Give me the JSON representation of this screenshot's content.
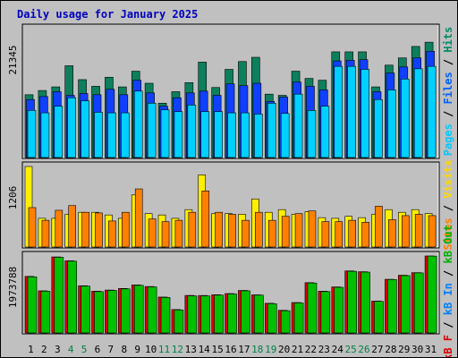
{
  "title": "Daily usage for January 2025",
  "colors": {
    "title": "#0000c0",
    "hits": "#0d7f5c",
    "files": "#1040ff",
    "pages": "#00d0ff",
    "visits": "#ffee00",
    "sites": "#ff8000",
    "kb_in": "#00c000",
    "kb_out": "#00c000",
    "kb_f": "#e00000",
    "weekend": "#007f46",
    "day_default": "#000000",
    "panel": "#c0c0c0"
  },
  "legend_top": [
    {
      "label": "Pages",
      "color": "#00c8ff"
    },
    {
      "label": "Files",
      "color": "#0060ff"
    },
    {
      "label": "Hits",
      "color": "#008a66"
    }
  ],
  "legend_mid": [
    {
      "label": "Sites",
      "color": "#ff8000"
    },
    {
      "label": "Visits",
      "color": "#ffd700"
    }
  ],
  "legend_bot": [
    {
      "label": "kB F",
      "color": "#e00000"
    },
    {
      "label": "kB In",
      "color": "#0080ff"
    },
    {
      "label": "kB Out",
      "color": "#00b000"
    }
  ],
  "chart_data": [
    {
      "type": "bar",
      "title": "Daily usage for January 2025",
      "panel": "hits/files/pages",
      "categories": [
        "1",
        "2",
        "3",
        "4",
        "5",
        "6",
        "7",
        "8",
        "9",
        "10",
        "11",
        "12",
        "13",
        "14",
        "15",
        "16",
        "17",
        "18",
        "19",
        "20",
        "21",
        "22",
        "23",
        "24",
        "25",
        "26",
        "27",
        "28",
        "29",
        "30",
        "31"
      ],
      "ymax_label": "21345",
      "ylim": [
        0,
        21345
      ],
      "series": [
        {
          "name": "Hits",
          "values": [
            10400,
            11100,
            11700,
            15200,
            12900,
            11800,
            13300,
            11700,
            14300,
            12300,
            9000,
            10900,
            12400,
            15800,
            11600,
            14600,
            15900,
            16600,
            10500,
            10300,
            14300,
            13100,
            12800,
            17500,
            17500,
            17500,
            11700,
            15300,
            16500,
            18400,
            19100
          ]
        },
        {
          "name": "Files",
          "values": [
            9600,
            10100,
            10900,
            10300,
            10600,
            10400,
            11300,
            10400,
            12800,
            10700,
            8500,
            9900,
            10700,
            11000,
            10300,
            12200,
            11900,
            12300,
            9300,
            10000,
            12500,
            11800,
            11200,
            16000,
            16100,
            16200,
            10900,
            14000,
            15000,
            16500,
            17600
          ]
        },
        {
          "name": "Pages",
          "values": [
            7800,
            7400,
            8500,
            9900,
            9400,
            7500,
            7400,
            7400,
            11000,
            9000,
            7900,
            7600,
            8700,
            7600,
            7600,
            7400,
            7400,
            7200,
            9000,
            7300,
            10500,
            7800,
            8500,
            15100,
            15100,
            14600,
            9600,
            11200,
            13000,
            14700,
            15100
          ]
        }
      ]
    },
    {
      "type": "bar",
      "panel": "visits/sites",
      "categories": [
        "1",
        "2",
        "3",
        "4",
        "5",
        "6",
        "7",
        "8",
        "9",
        "10",
        "11",
        "12",
        "13",
        "14",
        "15",
        "16",
        "17",
        "18",
        "19",
        "20",
        "21",
        "22",
        "23",
        "24",
        "25",
        "26",
        "27",
        "28",
        "29",
        "30",
        "31"
      ],
      "ymax_label": "1206",
      "ylim": [
        0,
        1206
      ],
      "series": [
        {
          "name": "Visits",
          "values": [
            1206,
            430,
            430,
            490,
            520,
            520,
            480,
            430,
            780,
            500,
            480,
            430,
            560,
            1080,
            500,
            500,
            490,
            720,
            520,
            560,
            490,
            530,
            440,
            430,
            460,
            440,
            490,
            560,
            520,
            560,
            500
          ]
        },
        {
          "name": "Sites",
          "values": [
            590,
            400,
            550,
            620,
            520,
            510,
            390,
            520,
            870,
            420,
            380,
            400,
            520,
            840,
            520,
            490,
            400,
            520,
            400,
            460,
            500,
            540,
            380,
            380,
            400,
            370,
            610,
            410,
            470,
            490,
            470
          ]
        }
      ]
    },
    {
      "type": "bar",
      "panel": "kb",
      "categories": [
        "1",
        "2",
        "3",
        "4",
        "5",
        "6",
        "7",
        "8",
        "9",
        "10",
        "11",
        "12",
        "13",
        "14",
        "15",
        "16",
        "17",
        "18",
        "19",
        "20",
        "21",
        "22",
        "23",
        "24",
        "25",
        "26",
        "27",
        "28",
        "29",
        "30",
        "31"
      ],
      "ymax_label": "1973788",
      "ylim": [
        0,
        1973788
      ],
      "series": [
        {
          "name": "kB F",
          "values": [
            1450000,
            1080000,
            1950000,
            1850000,
            1210000,
            1070000,
            1100000,
            1140000,
            1230000,
            1190000,
            920000,
            600000,
            962000,
            960000,
            980000,
            1010000,
            1090000,
            976000,
            760000,
            580000,
            780000,
            1290000,
            1070000,
            1180000,
            1590000,
            1570000,
            816000,
            1376000,
            1480000,
            1546000,
            1973788
          ]
        },
        {
          "name": "kB In",
          "values": [
            0,
            0,
            0,
            0,
            0,
            0,
            0,
            0,
            0,
            0,
            0,
            0,
            0,
            0,
            0,
            0,
            0,
            0,
            0,
            0,
            0,
            0,
            0,
            0,
            0,
            0,
            0,
            0,
            0,
            0,
            0
          ]
        },
        {
          "name": "kB Out",
          "values": [
            1440000,
            1070000,
            1940000,
            1840000,
            1200000,
            1060000,
            1090000,
            1130000,
            1220000,
            1180000,
            910000,
            590000,
            950000,
            950000,
            970000,
            1000000,
            1080000,
            970000,
            750000,
            570000,
            770000,
            1280000,
            1060000,
            1170000,
            1580000,
            1560000,
            810000,
            1370000,
            1470000,
            1540000,
            1970000
          ]
        }
      ]
    }
  ],
  "weekend_days": [
    "4",
    "5",
    "11",
    "12",
    "18",
    "19",
    "25",
    "26"
  ]
}
